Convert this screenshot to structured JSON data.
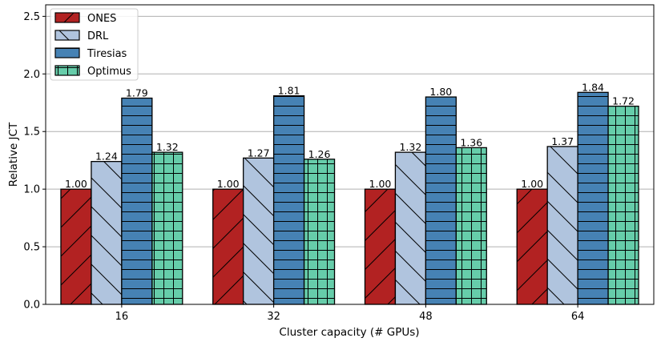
{
  "chart_data": {
    "type": "bar",
    "title": "",
    "xlabel": "Cluster capacity (# GPUs)",
    "ylabel": "Relative JCT",
    "categories": [
      "16",
      "32",
      "48",
      "64"
    ],
    "ylim": [
      0,
      2.6
    ],
    "yticks": [
      "0.0",
      "0.5",
      "1.0",
      "1.5",
      "2.0",
      "2.5"
    ],
    "grid": "y",
    "legend_position": "top-left",
    "series": [
      {
        "name": "ONES",
        "color": "#b22222",
        "hatch": "diagonal-up",
        "values": [
          1.0,
          1.0,
          1.0,
          1.0
        ],
        "labels": [
          "1.00",
          "1.00",
          "1.00",
          "1.00"
        ]
      },
      {
        "name": "DRL",
        "color": "#b0c4de",
        "hatch": "diagonal-down",
        "values": [
          1.24,
          1.27,
          1.32,
          1.37
        ],
        "labels": [
          "1.24",
          "1.27",
          "1.32",
          "1.37"
        ]
      },
      {
        "name": "Tiresias",
        "color": "#4682b4",
        "hatch": "horizontal",
        "values": [
          1.79,
          1.81,
          1.8,
          1.84
        ],
        "labels": [
          "1.79",
          "1.81",
          "1.80",
          "1.84"
        ]
      },
      {
        "name": "Optimus",
        "color": "#66cdaa",
        "hatch": "grid",
        "values": [
          1.32,
          1.26,
          1.36,
          1.72
        ],
        "labels": [
          "1.32",
          "1.26",
          "1.36",
          "1.72"
        ]
      }
    ]
  }
}
